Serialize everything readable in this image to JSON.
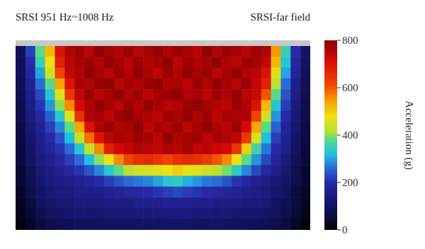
{
  "chart_data": {
    "type": "heatmap",
    "title": "SRSI 951 Hz~1008 Hz",
    "subtitle": "SRSI-far field",
    "tick_labels": false,
    "cells": [
      [
        90,
        220,
        380,
        520,
        700,
        760,
        780,
        750,
        790,
        770,
        760,
        780,
        750,
        770,
        790,
        760,
        780,
        770,
        750,
        790,
        760,
        780,
        770,
        750,
        780,
        760,
        550,
        350,
        200,
        110
      ],
      [
        90,
        200,
        350,
        480,
        680,
        750,
        770,
        780,
        760,
        790,
        770,
        750,
        780,
        760,
        770,
        790,
        750,
        780,
        760,
        770,
        790,
        760,
        750,
        780,
        770,
        740,
        520,
        330,
        190,
        100
      ],
      [
        90,
        190,
        300,
        440,
        620,
        740,
        760,
        790,
        770,
        750,
        780,
        760,
        790,
        770,
        750,
        780,
        760,
        790,
        770,
        780,
        750,
        770,
        790,
        760,
        750,
        700,
        460,
        300,
        180,
        90
      ],
      [
        80,
        170,
        260,
        380,
        540,
        700,
        770,
        760,
        780,
        790,
        750,
        770,
        760,
        780,
        790,
        760,
        770,
        750,
        780,
        760,
        790,
        770,
        750,
        780,
        740,
        680,
        420,
        260,
        160,
        80
      ],
      [
        80,
        160,
        230,
        330,
        460,
        640,
        740,
        780,
        750,
        770,
        790,
        760,
        780,
        750,
        770,
        780,
        790,
        760,
        770,
        750,
        780,
        760,
        790,
        750,
        730,
        600,
        380,
        240,
        150,
        80
      ],
      [
        70,
        150,
        210,
        290,
        400,
        560,
        720,
        760,
        790,
        770,
        750,
        780,
        760,
        790,
        770,
        750,
        760,
        780,
        790,
        770,
        760,
        750,
        780,
        760,
        700,
        520,
        330,
        220,
        140,
        70
      ],
      [
        70,
        140,
        190,
        250,
        330,
        460,
        650,
        760,
        770,
        750,
        780,
        790,
        770,
        760,
        750,
        780,
        770,
        790,
        760,
        780,
        750,
        770,
        760,
        760,
        620,
        440,
        290,
        200,
        130,
        70
      ],
      [
        60,
        130,
        170,
        220,
        280,
        380,
        540,
        700,
        760,
        780,
        760,
        770,
        790,
        750,
        770,
        760,
        780,
        750,
        770,
        790,
        760,
        750,
        780,
        720,
        540,
        380,
        250,
        180,
        120,
        60
      ],
      [
        60,
        120,
        160,
        200,
        240,
        320,
        430,
        580,
        700,
        750,
        770,
        760,
        780,
        770,
        750,
        790,
        760,
        770,
        780,
        750,
        770,
        760,
        740,
        640,
        450,
        320,
        220,
        170,
        110,
        60
      ],
      [
        50,
        110,
        150,
        180,
        210,
        260,
        330,
        430,
        560,
        680,
        720,
        740,
        760,
        750,
        740,
        760,
        750,
        770,
        740,
        750,
        730,
        720,
        640,
        500,
        360,
        270,
        200,
        160,
        100,
        50
      ],
      [
        50,
        100,
        140,
        160,
        190,
        220,
        260,
        320,
        400,
        480,
        560,
        620,
        650,
        660,
        640,
        620,
        650,
        660,
        650,
        630,
        600,
        560,
        480,
        380,
        290,
        230,
        180,
        140,
        90,
        50
      ],
      [
        40,
        90,
        130,
        150,
        170,
        190,
        210,
        240,
        280,
        330,
        380,
        420,
        440,
        450,
        460,
        480,
        500,
        470,
        460,
        440,
        420,
        390,
        340,
        280,
        230,
        190,
        160,
        130,
        80,
        40
      ],
      [
        40,
        80,
        120,
        140,
        150,
        160,
        170,
        180,
        200,
        220,
        240,
        260,
        270,
        280,
        300,
        330,
        340,
        310,
        290,
        270,
        260,
        240,
        210,
        190,
        170,
        150,
        130,
        110,
        70,
        40
      ],
      [
        30,
        70,
        110,
        130,
        140,
        140,
        150,
        150,
        160,
        170,
        180,
        190,
        190,
        200,
        210,
        220,
        230,
        220,
        210,
        200,
        190,
        180,
        170,
        160,
        150,
        140,
        120,
        100,
        60,
        30
      ],
      [
        25,
        60,
        100,
        120,
        130,
        130,
        140,
        140,
        140,
        150,
        150,
        150,
        160,
        160,
        160,
        170,
        170,
        170,
        160,
        160,
        150,
        150,
        150,
        140,
        140,
        130,
        110,
        90,
        55,
        25
      ],
      [
        20,
        45,
        80,
        100,
        110,
        115,
        120,
        120,
        125,
        130,
        130,
        130,
        135,
        135,
        135,
        140,
        140,
        140,
        135,
        135,
        130,
        130,
        125,
        120,
        120,
        110,
        95,
        75,
        45,
        20
      ],
      [
        10,
        30,
        55,
        70,
        80,
        85,
        90,
        90,
        95,
        95,
        100,
        100,
        100,
        100,
        105,
        105,
        105,
        105,
        100,
        100,
        100,
        95,
        95,
        90,
        85,
        80,
        70,
        55,
        30,
        10
      ]
    ],
    "colorbar": {
      "label": "Acceleration (g)",
      "range": [
        0,
        800
      ],
      "ticks": [
        0,
        200,
        400,
        600,
        800
      ]
    }
  }
}
